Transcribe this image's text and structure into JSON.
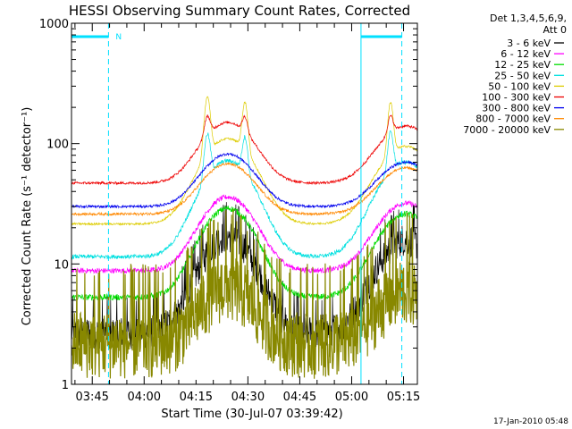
{
  "chart_data": {
    "type": "line",
    "title": "HESSI Observing Summary Count Rates, Corrected",
    "xlabel": "Start Time (30-Jul-07 03:39:42)",
    "ylabel": "Corrected Count Rate (s⁻¹ detector⁻¹)",
    "yscale": "log",
    "ylim": [
      1,
      1000
    ],
    "xlim_minutes": [
      -0.7,
      99.3
    ],
    "x_tick_labels": [
      "03:45",
      "04:00",
      "04:15",
      "04:30",
      "04:45",
      "05:00",
      "05:15"
    ],
    "x_tick_minutes": [
      5.3,
      20.3,
      35.3,
      50.3,
      65.3,
      80.3,
      95.3
    ],
    "y_tick_labels": [
      "1",
      "10",
      "100",
      "1000"
    ],
    "y_tick_values": [
      1,
      10,
      100,
      1000
    ],
    "legend_header": [
      "Det 1,3,4,5,6,9,",
      "Att 0"
    ],
    "legend_position": "right, outside plot",
    "series": [
      {
        "name": "3 - 6 keV",
        "color": "#000000",
        "base": 2.7,
        "peak1": 17,
        "peak2": 16,
        "spike": 1.0,
        "noise": 0.14,
        "step": 0.7
      },
      {
        "name": "6 - 12 keV",
        "color": "#ff00ff",
        "base": 8.8,
        "peak1": 36,
        "peak2": 32,
        "spike": 1.0,
        "noise": 0.05,
        "step": 0.7
      },
      {
        "name": "12 - 25 keV",
        "color": "#00dd00",
        "base": 5.3,
        "peak1": 29,
        "peak2": 26,
        "spike": 1.0,
        "noise": 0.06,
        "step": 0.7
      },
      {
        "name": "25 - 50 keV",
        "color": "#00e0e0",
        "base": 11.5,
        "peak1": 72,
        "peak2": 70,
        "spike": 2.3,
        "noise": 0.04,
        "step": 0.7
      },
      {
        "name": "50 - 100 keV",
        "color": "#ddcc00",
        "base": 21.5,
        "peak1": 110,
        "peak2": 95,
        "spike": 3.0,
        "noise": 0.02,
        "step": 0.7
      },
      {
        "name": "100 - 300 keV",
        "color": "#ee0000",
        "base": 47,
        "peak1": 150,
        "peak2": 140,
        "spike": 1.45,
        "noise": 0.025,
        "step": 0.7
      },
      {
        "name": "300 - 800 keV",
        "color": "#0000ee",
        "base": 30,
        "peak1": 82,
        "peak2": 70,
        "spike": 1.0,
        "noise": 0.025,
        "step": 0.7
      },
      {
        "name": "800 - 7000 keV",
        "color": "#ff8800",
        "base": 26,
        "peak1": 68,
        "peak2": 63,
        "spike": 1.0,
        "noise": 0.025,
        "step": 0.7
      },
      {
        "name": "7000 - 20000 keV",
        "color": "#888800",
        "base": 2.2,
        "peak1": 6.5,
        "peak2": 6.0,
        "spike": 1.0,
        "noise": 0.3,
        "step": 1.2
      }
    ],
    "saa_intervals_minutes": [
      [
        -0.7,
        10.0
      ],
      [
        83.0,
        94.8
      ]
    ],
    "saa_flag_label": "N",
    "grid": false
  },
  "footer": {
    "timestamp": "17-Jan-2010 05:48"
  },
  "colors": {
    "saa": "#00e0ff"
  }
}
